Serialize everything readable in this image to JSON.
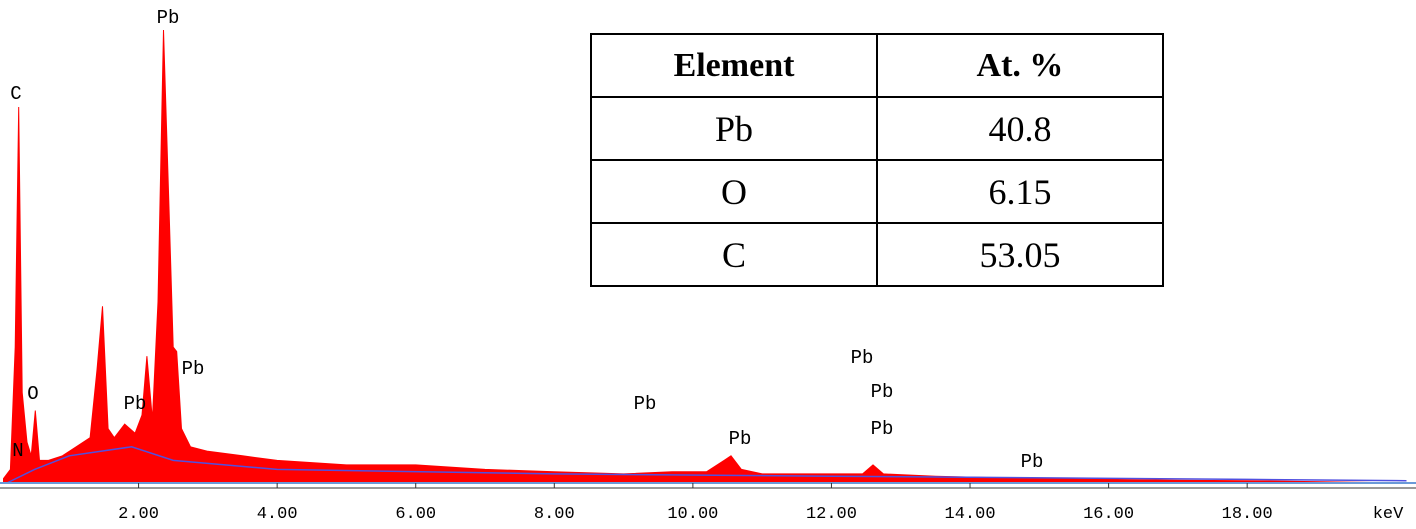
{
  "chart_data": {
    "type": "area",
    "x": [
      0.05,
      0.15,
      0.22,
      0.27,
      0.32,
      0.39,
      0.45,
      0.51,
      0.57,
      0.7,
      0.9,
      1.1,
      1.3,
      1.4,
      1.48,
      1.56,
      1.65,
      1.8,
      1.95,
      2.05,
      2.12,
      2.2,
      2.28,
      2.36,
      2.44,
      2.5,
      2.55,
      2.62,
      2.75,
      3.0,
      3.5,
      4.0,
      5.0,
      6.0,
      7.0,
      8.0,
      9.0,
      9.7,
      10.2,
      10.45,
      10.55,
      10.7,
      11.0,
      12.0,
      12.45,
      12.6,
      12.75,
      13.5,
      14.8,
      16.0,
      17.0,
      18.0,
      20.3
    ],
    "values": [
      1,
      3,
      30,
      83,
      20,
      9,
      6,
      16,
      5,
      5,
      6,
      8,
      10,
      25,
      39,
      12,
      10,
      13,
      11,
      15,
      28,
      14,
      40,
      100,
      60,
      30,
      29,
      12,
      8,
      7,
      6,
      5,
      4,
      4,
      3,
      2.5,
      2,
      2.5,
      2.5,
      5,
      6,
      3,
      2,
      2,
      2,
      4,
      2,
      1.5,
      1,
      0.8,
      0.6,
      0.5,
      0
    ],
    "color": "#ff0000",
    "background": {
      "x": [
        0.1,
        0.5,
        1.0,
        1.9,
        2.5,
        4.0,
        8.0,
        12.0,
        18.0,
        20.3
      ],
      "values": [
        0,
        3,
        6,
        8,
        5,
        3,
        2,
        1.5,
        0.8,
        0.5
      ],
      "color": "#5050e0"
    },
    "xlim": [
      0,
      20.35
    ],
    "ylim": [
      0,
      100
    ],
    "xticks": [
      {
        "value": 2,
        "label": "2.00"
      },
      {
        "value": 4,
        "label": "4.00"
      },
      {
        "value": 6,
        "label": "6.00"
      },
      {
        "value": 8,
        "label": "8.00"
      },
      {
        "value": 10,
        "label": "10.00"
      },
      {
        "value": 12,
        "label": "12.00"
      },
      {
        "value": 14,
        "label": "14.00"
      },
      {
        "value": 16,
        "label": "16.00"
      },
      {
        "value": 18,
        "label": "18.00"
      }
    ],
    "x_label": "keV",
    "annotations": [
      "C",
      "O",
      "N",
      "Pb",
      "Pb",
      "Pb",
      "Pb",
      "Pb",
      "Pb",
      "Pb",
      "Pb",
      "Pb"
    ]
  },
  "table": {
    "header": [
      "Element",
      "At. %"
    ],
    "rows": [
      [
        "Pb",
        "40.8"
      ],
      [
        "O",
        "6.15"
      ],
      [
        "C",
        "53.05"
      ]
    ]
  }
}
